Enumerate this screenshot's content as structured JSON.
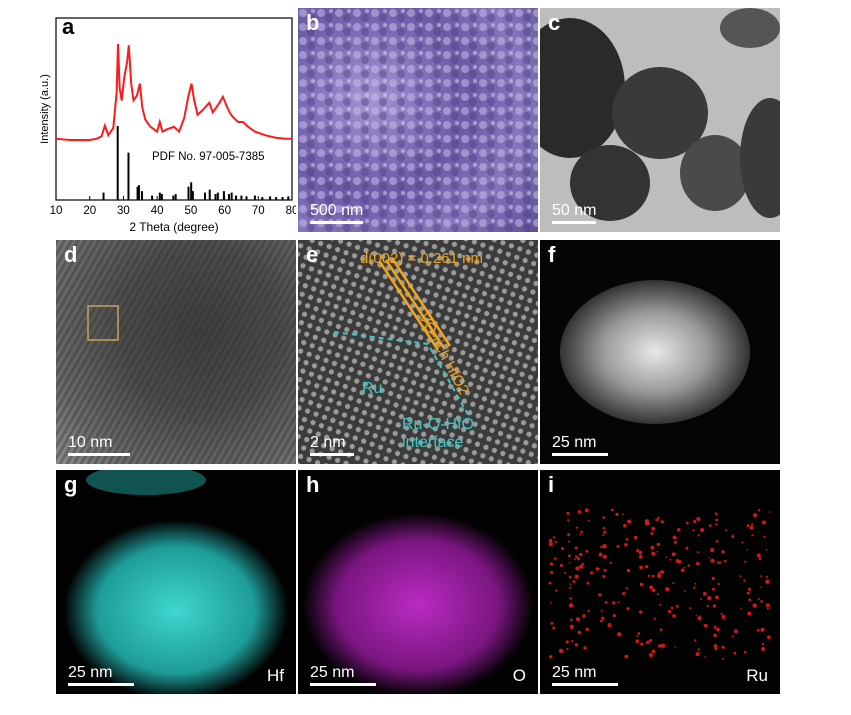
{
  "panels": {
    "a": {
      "label": "a"
    },
    "b": {
      "label": "b",
      "scale": "500 nm"
    },
    "c": {
      "label": "c",
      "scale": "50 nm"
    },
    "d": {
      "label": "d",
      "scale": "10 nm"
    },
    "e": {
      "label": "e",
      "scale": "2 nm",
      "d_spacing": "d(002) = 0.261 nm",
      "vo_label": "VO-rich HfO2",
      "ru_label": "Ru",
      "interface_label1": "Ru-O-HfO",
      "interface_label2": "interface"
    },
    "f": {
      "label": "f",
      "scale": "25 nm"
    },
    "g": {
      "label": "g",
      "scale": "25 nm",
      "element": "Hf"
    },
    "h": {
      "label": "h",
      "scale": "25 nm",
      "element": "O"
    },
    "i": {
      "label": "i",
      "scale": "25 nm",
      "element": "Ru"
    }
  },
  "chart_data": {
    "type": "line",
    "xlabel": "2 Theta (degree)",
    "ylabel": "Intensity (a.u.)",
    "xlim": [
      10,
      80
    ],
    "xticks": [
      10,
      20,
      30,
      40,
      50,
      60,
      70,
      80
    ],
    "reference_label": "PDF No. 97-005-7385",
    "colors": {
      "pattern": "#ff1a1a",
      "reference": "#000000"
    },
    "series": [
      {
        "values_x": [
          10,
          14,
          18,
          20,
          22,
          23.5,
          24.5,
          25.5,
          27,
          28,
          28.4,
          28.9,
          29.5,
          30.3,
          31.1,
          31.6,
          32.3,
          33,
          34,
          34.9,
          35.6,
          36.5,
          38,
          40,
          40.8,
          41.6,
          43,
          45,
          46.5,
          48,
          49.3,
          50.2,
          51,
          52,
          53.5,
          55.5,
          56.5,
          57.5,
          58.5,
          59.5,
          60.5,
          61.5,
          62.5,
          64,
          65.5,
          67,
          69,
          72,
          75,
          78,
          80
        ],
        "values_y": [
          0.16,
          0.15,
          0.15,
          0.15,
          0.16,
          0.18,
          0.27,
          0.19,
          0.25,
          0.55,
          0.95,
          0.58,
          0.48,
          0.68,
          0.8,
          0.94,
          0.62,
          0.48,
          0.52,
          0.62,
          0.42,
          0.32,
          0.26,
          0.22,
          0.3,
          0.22,
          0.24,
          0.26,
          0.22,
          0.33,
          0.52,
          0.62,
          0.48,
          0.36,
          0.4,
          0.46,
          0.38,
          0.42,
          0.46,
          0.51,
          0.44,
          0.38,
          0.34,
          0.3,
          0.3,
          0.26,
          0.22,
          0.19,
          0.17,
          0.16,
          0.16
        ]
      }
    ],
    "reference_sticks": {
      "x": [
        24.1,
        28.3,
        31.5,
        34.2,
        34.6,
        35.5,
        38.5,
        40.8,
        41.4,
        44.8,
        45.5,
        49.3,
        50.1,
        50.6,
        54.2,
        55.6,
        57.3,
        58.0,
        59.8,
        61.3,
        62.1,
        63.4,
        65.0,
        66.5,
        69.0,
        71.2,
        73.5,
        75.3,
        77.2,
        78.9
      ],
      "y": [
        0.1,
        1.0,
        0.64,
        0.18,
        0.2,
        0.12,
        0.06,
        0.1,
        0.08,
        0.06,
        0.08,
        0.18,
        0.24,
        0.12,
        0.1,
        0.14,
        0.08,
        0.1,
        0.12,
        0.08,
        0.1,
        0.06,
        0.06,
        0.05,
        0.06,
        0.04,
        0.05,
        0.04,
        0.04,
        0.05
      ]
    }
  }
}
